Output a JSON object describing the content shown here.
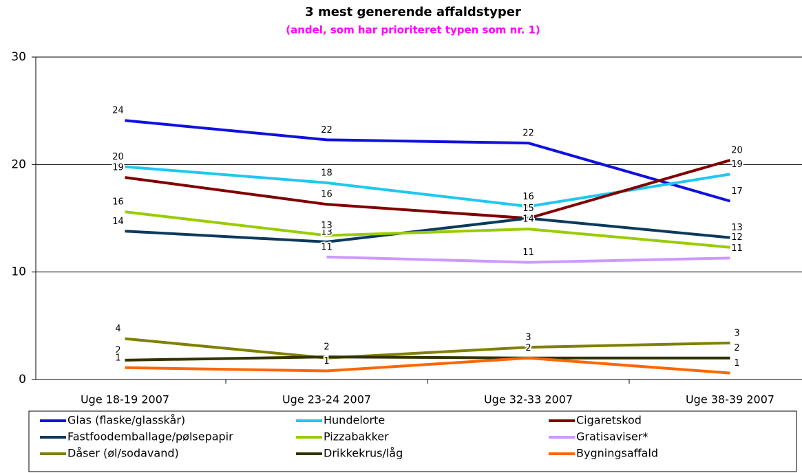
{
  "chart_data": {
    "type": "line",
    "title": "3 mest generende affaldstyper",
    "subtitle": "(andel, som har prioriteret typen som nr. 1)",
    "categories": [
      "Uge 18-19 2007",
      "Uge 23-24 2007",
      "Uge 32-33 2007",
      "Uge 38-39 2007"
    ],
    "ylim": [
      0,
      30
    ],
    "yticks": [
      0,
      10,
      20,
      30
    ],
    "grid": true,
    "series": [
      {
        "name": "Glas (flaske/glasskår)",
        "color": "#1010e0",
        "values": [
          24.1,
          22.3,
          22.0,
          16.6
        ],
        "value_labels": [
          "24",
          "22",
          "22",
          "17"
        ]
      },
      {
        "name": "Hundelorte",
        "color": "#1ec8ef",
        "values": [
          19.8,
          18.3,
          16.1,
          19.1
        ],
        "value_labels": [
          "20",
          "18",
          "16",
          "19"
        ]
      },
      {
        "name": "Cigaretskod",
        "color": "#800000",
        "values": [
          18.8,
          16.3,
          15.0,
          20.4
        ],
        "value_labels": [
          "19",
          "16",
          "15",
          "20"
        ]
      },
      {
        "name": "Fastfoodemballage/pølsepapir",
        "color": "#0d3a5c",
        "values": [
          13.8,
          12.8,
          15.0,
          13.2
        ],
        "value_labels": [
          "14",
          "13",
          "15",
          "13"
        ]
      },
      {
        "name": "Pizzabakker",
        "color": "#99cc00",
        "values": [
          15.6,
          13.4,
          14.0,
          12.3
        ],
        "value_labels": [
          "16",
          "13",
          "14",
          "12"
        ]
      },
      {
        "name": "Gratisaviser*",
        "color": "#cc99ff",
        "values": [
          null,
          11.4,
          10.9,
          11.3
        ],
        "value_labels": [
          null,
          "11",
          "11",
          "11"
        ]
      },
      {
        "name": "Dåser (øl/sodavand)",
        "color": "#808000",
        "values": [
          3.8,
          2.0,
          3.0,
          3.4
        ],
        "value_labels": [
          "4",
          "2",
          "3",
          "3"
        ]
      },
      {
        "name": "Drikkekrus/låg",
        "color": "#333300",
        "values": [
          1.8,
          2.1,
          2.0,
          2.0
        ],
        "value_labels": [
          "2",
          "2",
          "2",
          "2"
        ]
      },
      {
        "name": "Bygningsaffald",
        "color": "#ff6600",
        "values": [
          1.1,
          0.8,
          2.0,
          0.6
        ],
        "value_labels": [
          "1",
          "1",
          "2",
          "1"
        ]
      }
    ]
  }
}
